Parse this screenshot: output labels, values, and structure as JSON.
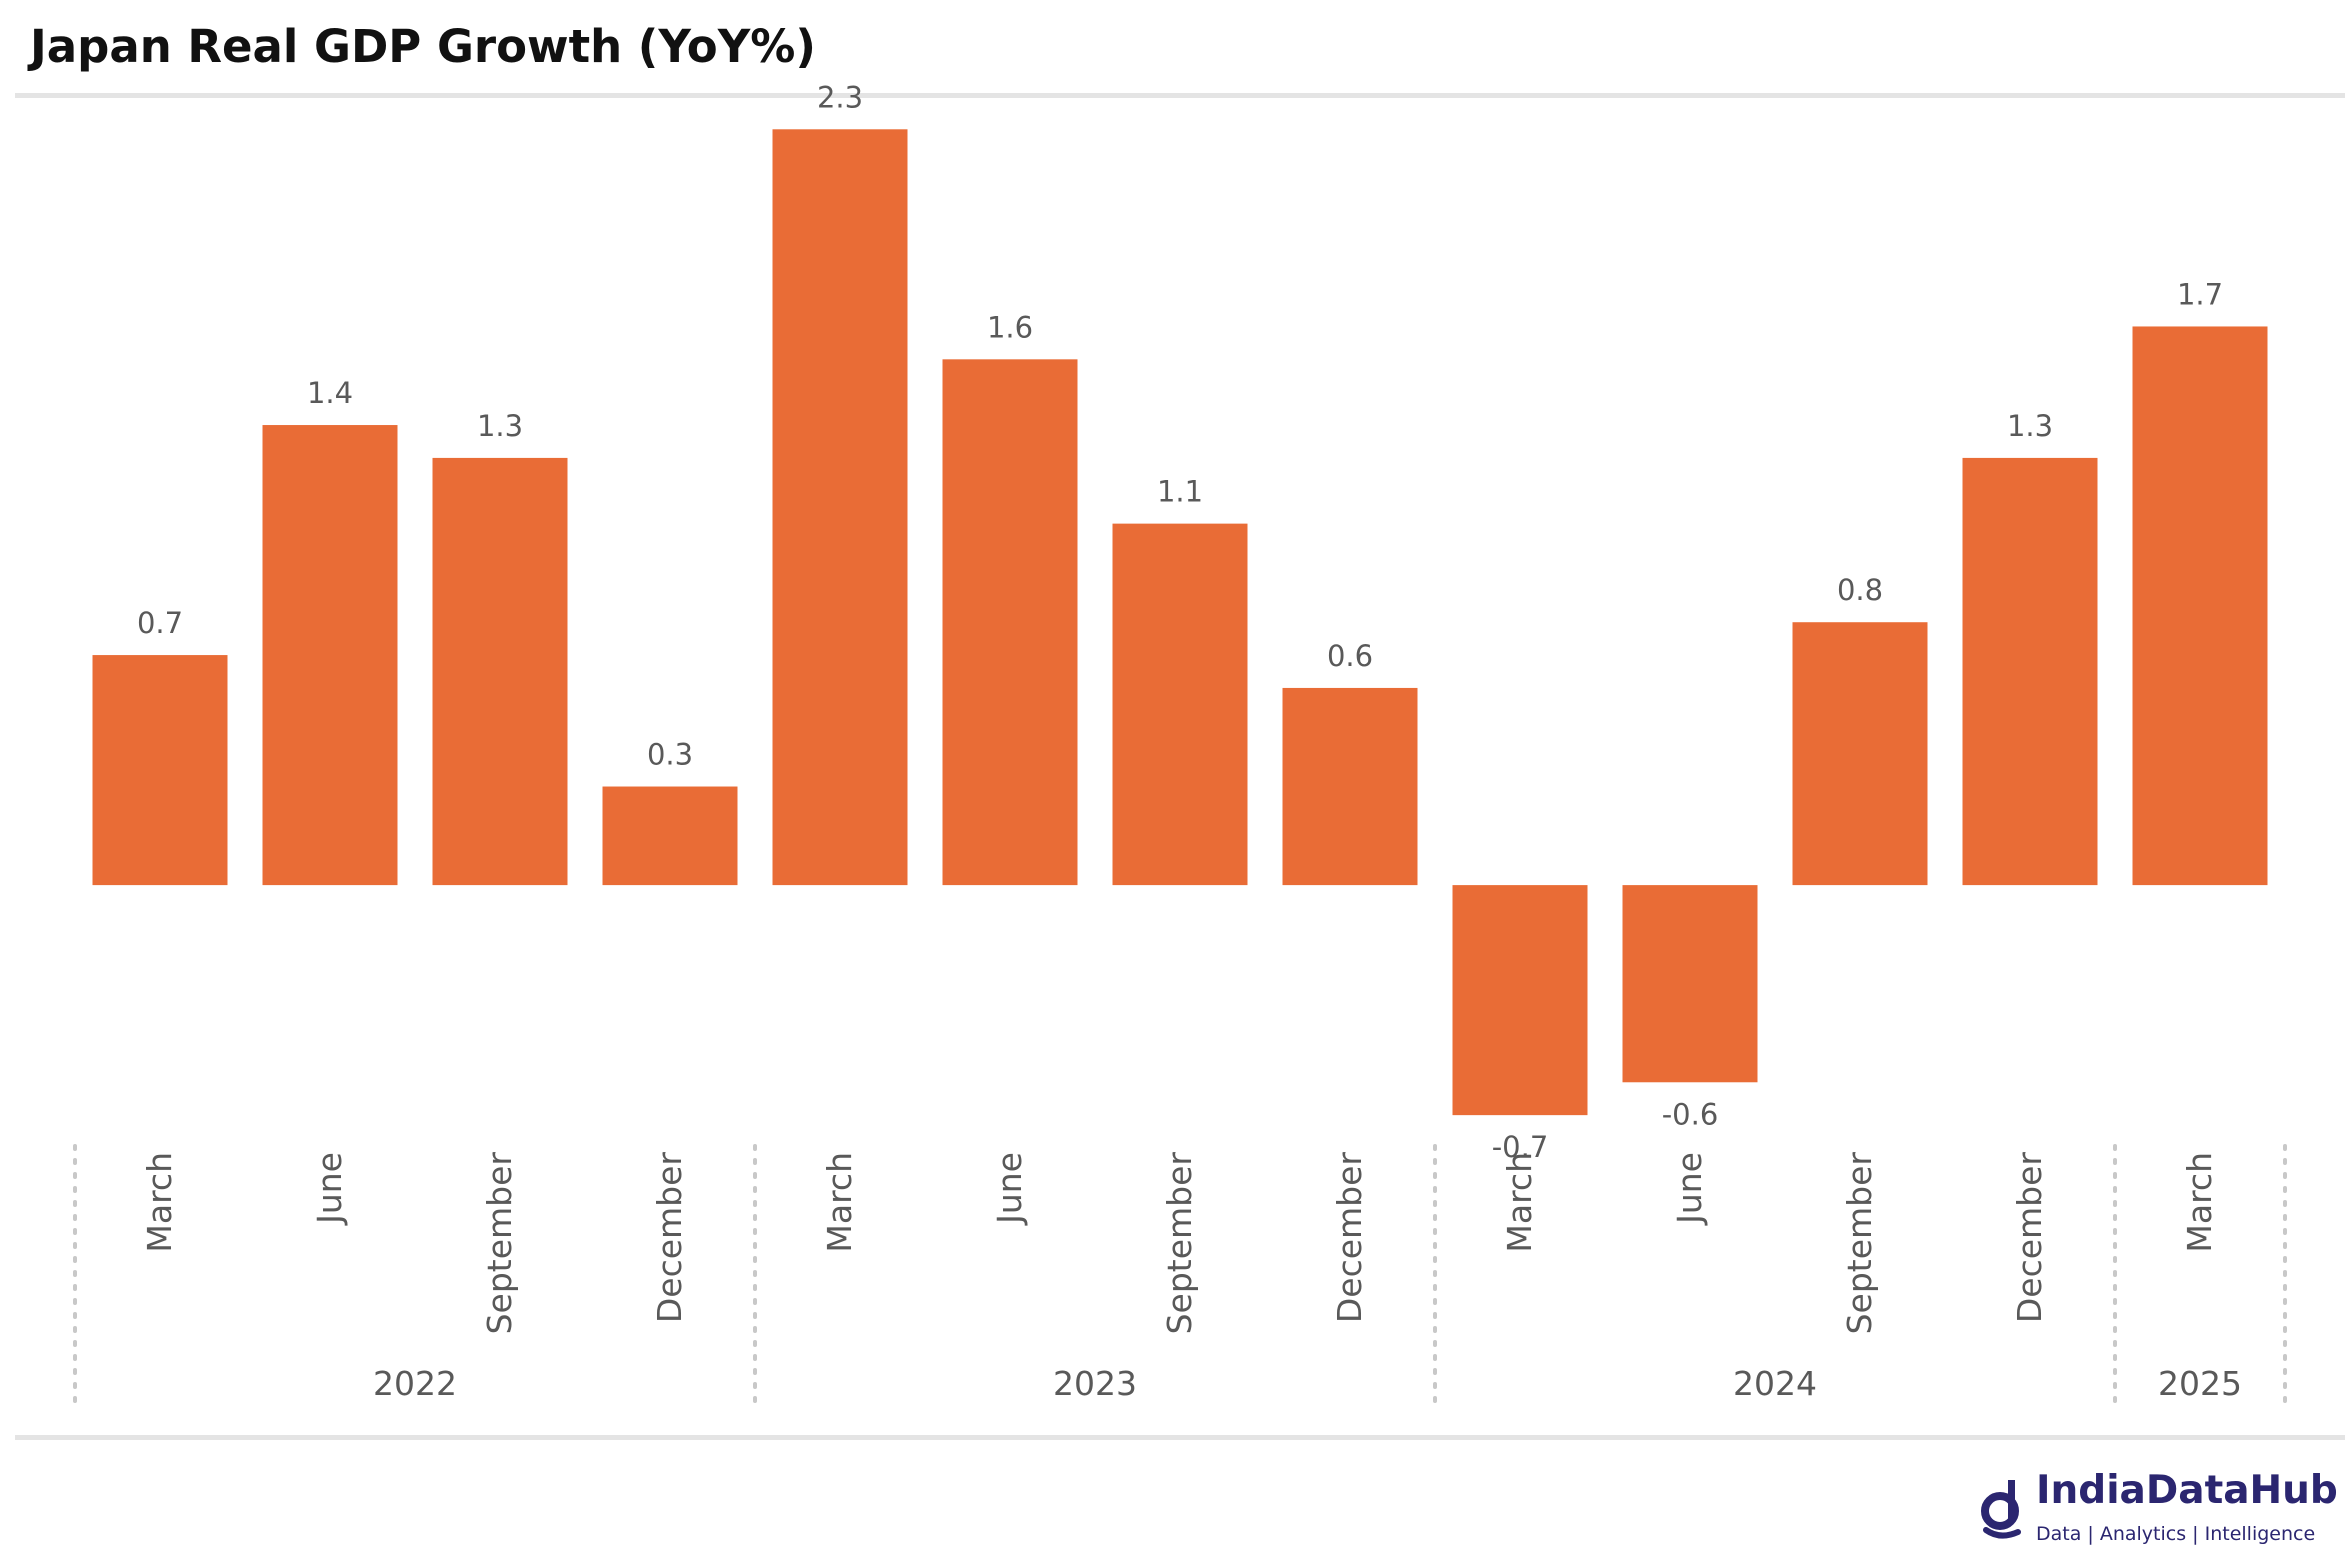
{
  "page": {
    "title": "Japan Real GDP Growth (YoY%)"
  },
  "chart_data": {
    "type": "bar",
    "title": "Japan Real GDP Growth (YoY%)",
    "xlabel": "",
    "ylabel": "",
    "categories": [
      "March",
      "June",
      "September",
      "December",
      "March",
      "June",
      "September",
      "December",
      "March",
      "June",
      "September",
      "December",
      "March"
    ],
    "category_years": [
      "2022",
      "2022",
      "2022",
      "2022",
      "2023",
      "2023",
      "2023",
      "2023",
      "2024",
      "2024",
      "2024",
      "2024",
      "2025"
    ],
    "year_groups": [
      {
        "label": "2022",
        "count": 4
      },
      {
        "label": "2023",
        "count": 4
      },
      {
        "label": "2024",
        "count": 4
      },
      {
        "label": "2025",
        "count": 1
      }
    ],
    "values": [
      0.7,
      1.4,
      1.3,
      0.3,
      2.3,
      1.6,
      1.1,
      0.6,
      -0.7,
      -0.6,
      0.8,
      1.3,
      1.7
    ],
    "data_labels": [
      "0.7",
      "1.4",
      "1.3",
      "0.3",
      "2.3",
      "1.6",
      "1.1",
      "0.6",
      "-0.7",
      "-0.6",
      "0.8",
      "1.3",
      "1.7"
    ],
    "ylim": [
      -0.8,
      2.45
    ],
    "grid": false,
    "legend": "none",
    "bar_color": "#e96c36"
  },
  "brand": {
    "name": "IndiaDataHub",
    "tagline": "Data | Analytics | Intelligence",
    "icon": "india-data-hub-logo-icon",
    "color": "#2b2670"
  }
}
